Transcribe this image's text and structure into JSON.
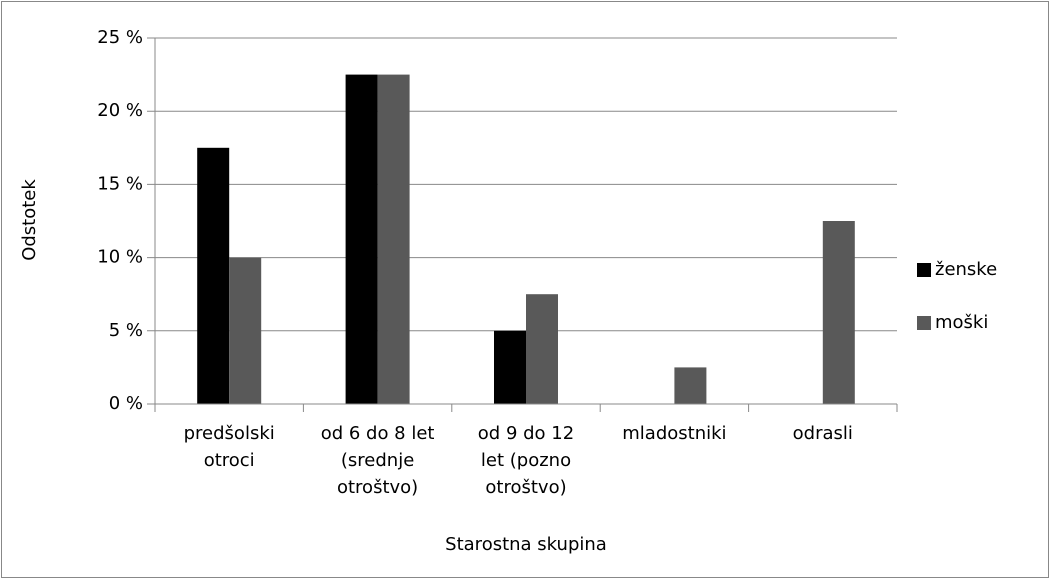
{
  "chart_data": {
    "type": "bar",
    "categories": [
      "predšolski\notroci",
      "od 6 do 8 let\n(srednje\notroštvo)",
      "od 9 do 12\nlet (pozno\notroštvo)",
      "mladostniki",
      "odrasli"
    ],
    "series": [
      {
        "name": "ženske",
        "color": "#000000",
        "values": [
          17.5,
          22.5,
          5,
          0,
          0
        ]
      },
      {
        "name": "moški",
        "color": "#595959",
        "values": [
          10,
          22.5,
          7.5,
          2.5,
          12.5
        ]
      }
    ],
    "ylim": [
      0,
      25
    ],
    "yticks": [
      {
        "value": 0,
        "label": "0 %"
      },
      {
        "value": 5,
        "label": "5 %"
      },
      {
        "value": 10,
        "label": "10 %"
      },
      {
        "value": 15,
        "label": "15 %"
      },
      {
        "value": 20,
        "label": "20 %"
      },
      {
        "value": 25,
        "label": "25 %"
      }
    ],
    "xlabel": "Starostna skupina",
    "ylabel": "Odstotek",
    "grid": true,
    "legend": "right"
  }
}
